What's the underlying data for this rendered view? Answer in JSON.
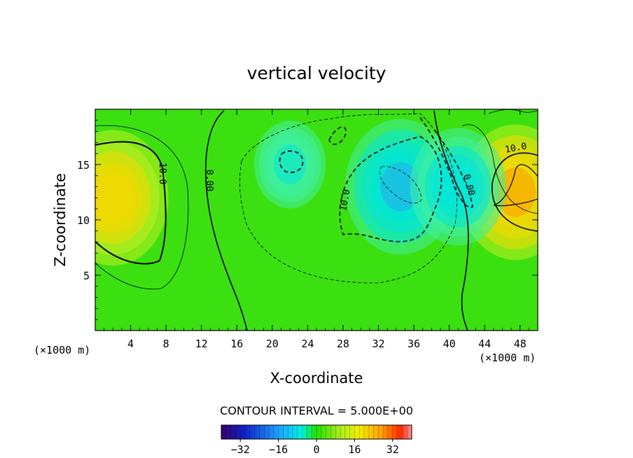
{
  "chart_data": {
    "type": "heatmap",
    "title": "vertical velocity",
    "xlabel": "X-coordinate",
    "ylabel": "Z-coordinate",
    "x_unit": "(×1000 m)",
    "x_unit_right": "(×1000 m)",
    "xlim": [
      0,
      50
    ],
    "ylim": [
      0,
      20
    ],
    "x_ticks": [
      4,
      8,
      12,
      16,
      20,
      24,
      28,
      32,
      36,
      40,
      44,
      48
    ],
    "y_ticks": [
      5,
      10,
      15
    ],
    "contour_interval_label": "CONTOUR INTERVAL = 5.000E+00",
    "contour_labels": [
      "10.0",
      "0.00",
      "10.0",
      "0.00",
      "10.0"
    ],
    "colorbar": {
      "range": [
        -40,
        40
      ],
      "tick_values": [
        -32,
        -16,
        0,
        16,
        32
      ],
      "tick_labels": [
        "−32",
        "−16",
        "0",
        "16",
        "32"
      ]
    },
    "features": [
      {
        "x": 2,
        "z": 12,
        "value": 20
      },
      {
        "x": 34.5,
        "z": 13,
        "value": -18
      },
      {
        "x": 47.5,
        "z": 12.5,
        "value": 24
      },
      {
        "x": 22,
        "z": 15,
        "value": -10
      },
      {
        "x": 41,
        "z": 13,
        "value": -15
      }
    ]
  }
}
